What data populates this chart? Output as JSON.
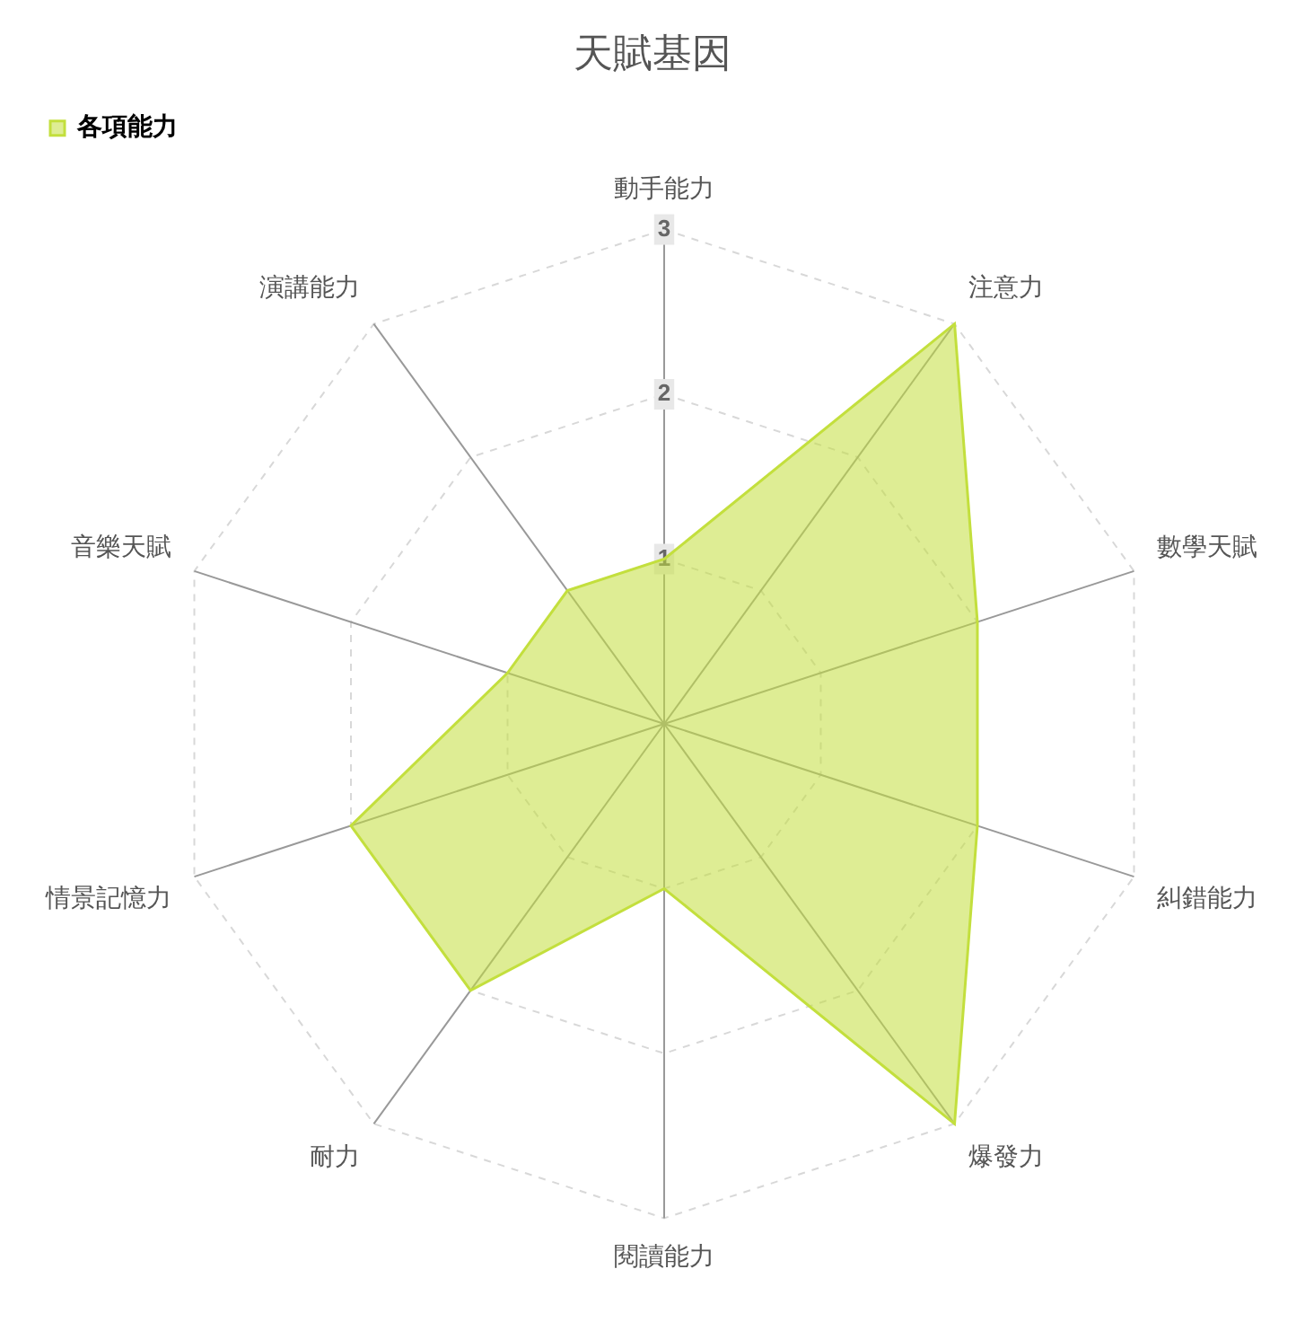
{
  "chart_data": {
    "type": "radar",
    "title": "天賦基因",
    "categories": [
      "動手能力",
      "注意力",
      "數學天賦",
      "糾錯能力",
      "爆發力",
      "閱讀能力",
      "耐力",
      "情景記憶力",
      "音樂天賦",
      "演講能力"
    ],
    "series": [
      {
        "name": "各項能力",
        "color": "#c3df3d",
        "values": [
          1,
          3,
          2,
          2,
          3,
          1,
          2,
          2,
          1,
          1
        ]
      }
    ],
    "ylim": [
      0,
      3
    ],
    "yticks": [
      1,
      2,
      3
    ],
    "grid": true,
    "legend": "top left"
  }
}
